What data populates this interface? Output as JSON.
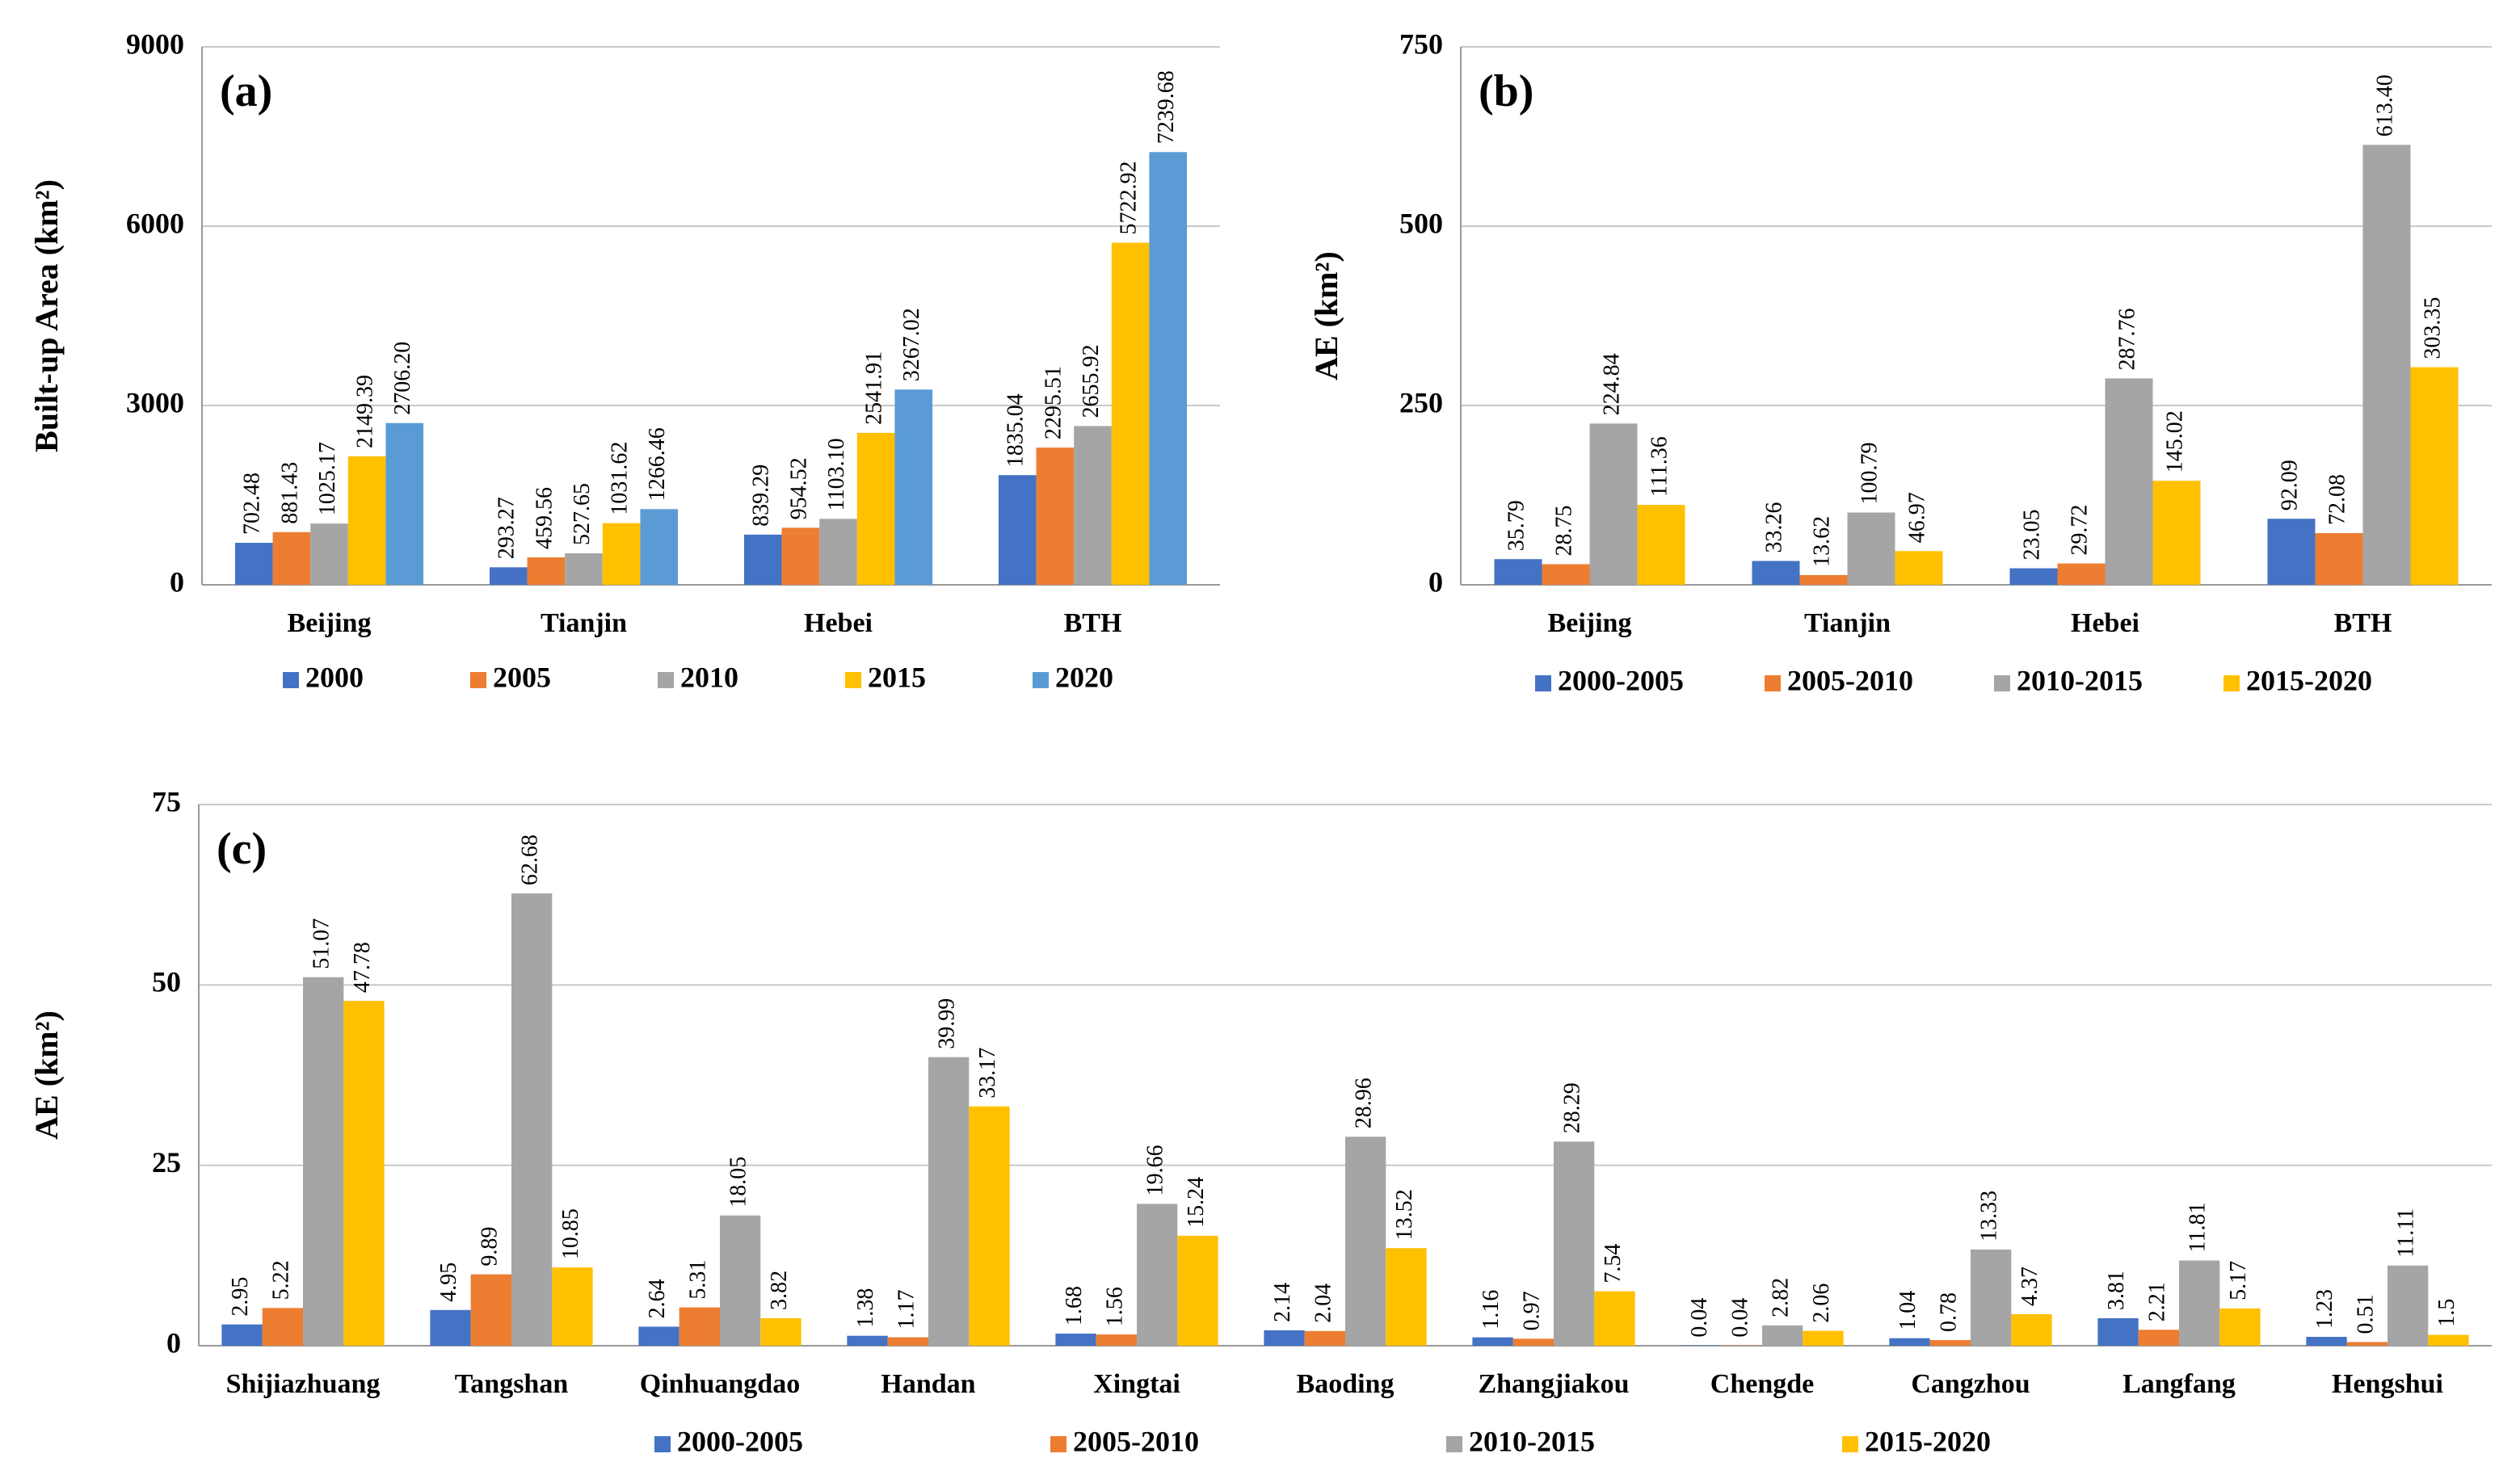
{
  "chart_data": [
    {
      "type": "bar",
      "annotation": "(a)",
      "ylabel": "Built-up Area (km²)",
      "categories": [
        "Beijing",
        "Tianjin",
        "Hebei",
        "BTH"
      ],
      "series": [
        {
          "name": "2000",
          "color": "#4472c4",
          "values": [
            702.48,
            293.27,
            839.29,
            1835.04
          ]
        },
        {
          "name": "2005",
          "color": "#ed7d31",
          "values": [
            881.43,
            459.56,
            954.52,
            2295.51
          ]
        },
        {
          "name": "2010",
          "color": "#a5a5a5",
          "values": [
            1025.17,
            527.65,
            1103.1,
            2655.92
          ],
          "value_labels": [
            "1025.17",
            "527.65",
            "1103.10",
            "2655.92"
          ]
        },
        {
          "name": "2015",
          "color": "#ffc000",
          "values": [
            2149.39,
            1031.62,
            2541.91,
            5722.92
          ]
        },
        {
          "name": "2020",
          "color": "#5b9bd5",
          "values": [
            2706.2,
            1266.46,
            3267.02,
            7239.68
          ],
          "value_labels": [
            "2706.20",
            "1266.46",
            "3267.02",
            "7239.68"
          ]
        }
      ],
      "ylim": [
        0,
        9000
      ],
      "yticks": [
        0,
        3000,
        6000,
        9000
      ],
      "grid": true
    },
    {
      "type": "bar",
      "annotation": "(b)",
      "ylabel": "AE (km²)",
      "categories": [
        "Beijing",
        "Tianjin",
        "Hebei",
        "BTH"
      ],
      "series": [
        {
          "name": "2000-2005",
          "color": "#4472c4",
          "values": [
            35.79,
            33.26,
            23.05,
            92.09
          ]
        },
        {
          "name": "2005-2010",
          "color": "#ed7d31",
          "values": [
            28.75,
            13.62,
            29.72,
            72.08
          ]
        },
        {
          "name": "2010-2015",
          "color": "#a5a5a5",
          "values": [
            224.84,
            100.79,
            287.76,
            613.4
          ],
          "value_labels": [
            "224.84",
            "100.79",
            "287.76",
            "613.40"
          ]
        },
        {
          "name": "2015-2020",
          "color": "#ffc000",
          "values": [
            111.36,
            46.97,
            145.02,
            303.35
          ]
        }
      ],
      "ylim": [
        0,
        750
      ],
      "yticks": [
        0,
        250,
        500,
        750
      ],
      "grid": true
    },
    {
      "type": "bar",
      "annotation": "(c)",
      "ylabel": "AE (km²)",
      "categories": [
        "Shijiazhuang",
        "Tangshan",
        "Qinhuangdao",
        "Handan",
        "Xingtai",
        "Baoding",
        "Zhangjiakou",
        "Chengde",
        "Cangzhou",
        "Langfang",
        "Hengshui"
      ],
      "series": [
        {
          "name": "2000-2005",
          "color": "#4472c4",
          "values": [
            2.95,
            4.95,
            2.64,
            1.38,
            1.68,
            2.14,
            1.16,
            0.04,
            1.04,
            3.81,
            1.23
          ]
        },
        {
          "name": "2005-2010",
          "color": "#ed7d31",
          "values": [
            5.22,
            9.89,
            5.31,
            1.17,
            1.56,
            2.04,
            0.97,
            0.04,
            0.78,
            2.21,
            0.51
          ]
        },
        {
          "name": "2010-2015",
          "color": "#a5a5a5",
          "values": [
            51.07,
            62.68,
            18.05,
            39.99,
            19.66,
            28.96,
            28.29,
            2.82,
            13.33,
            11.81,
            11.11
          ]
        },
        {
          "name": "2015-2020",
          "color": "#ffc000",
          "values": [
            47.78,
            10.85,
            3.82,
            33.17,
            15.24,
            13.52,
            7.54,
            2.06,
            4.37,
            5.17,
            1.5
          ]
        }
      ],
      "ylim": [
        0,
        75
      ],
      "yticks": [
        0,
        25,
        50,
        75
      ],
      "grid": true
    }
  ]
}
